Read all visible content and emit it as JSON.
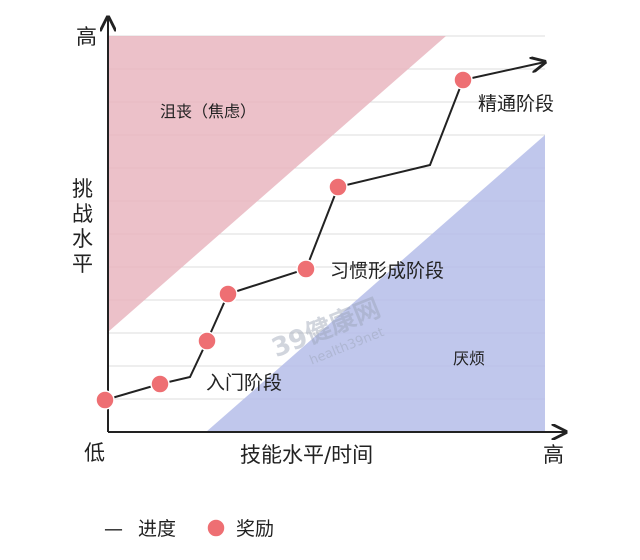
{
  "axes": {
    "y_high": "高",
    "y_title_chars": [
      "挑",
      "战",
      "水",
      "平"
    ],
    "x_low": "低",
    "x_title": "技能水平/时间",
    "x_high": "高"
  },
  "regions": {
    "anxiety": "沮丧（焦虑）",
    "boredom": "厌烦"
  },
  "stages": {
    "entry": "入门阶段",
    "habit": "习惯形成阶段",
    "master": "精通阶段"
  },
  "watermark": {
    "brand": "39健康网",
    "url": "health39net"
  },
  "legend": {
    "progress_marker": "—",
    "progress": "进度",
    "reward": "奖励"
  },
  "colors": {
    "anxiety_fill": "#e9b6c0",
    "boredom_fill": "#b5bde9",
    "reward_dot": "#ee6f73",
    "line": "#222222"
  }
}
